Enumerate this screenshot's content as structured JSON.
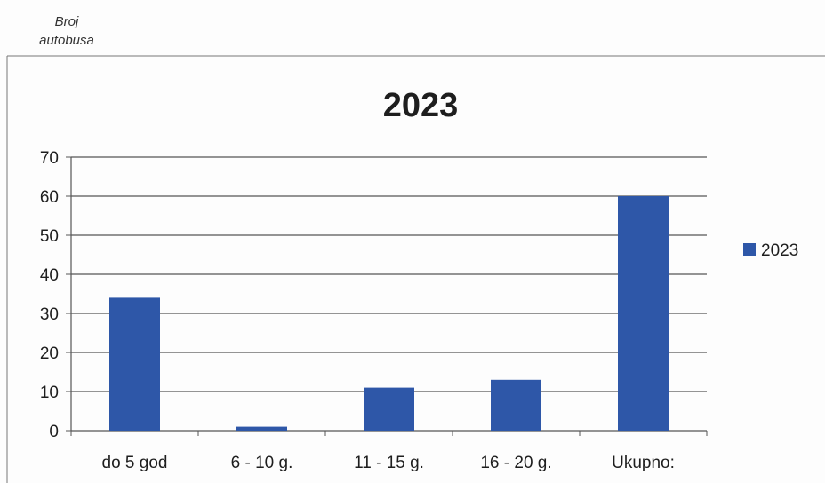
{
  "y_axis_caption": "Broj\nautobusa",
  "colors": {
    "bar": "#2E57A8",
    "grid": "#555555",
    "axis": "#555555"
  },
  "chart_data": {
    "type": "bar",
    "title": "2023",
    "xlabel": "",
    "ylabel": "Broj autobusa",
    "categories": [
      "do 5 god",
      "6 - 10 g.",
      "11 - 15 g.",
      "16 - 20 g.",
      "Ukupno:"
    ],
    "series": [
      {
        "name": "2023",
        "values": [
          34,
          1,
          11,
          13,
          60
        ]
      }
    ],
    "ylim": [
      0,
      70
    ],
    "yticks": [
      0,
      10,
      20,
      30,
      40,
      50,
      60,
      70
    ],
    "grid": true,
    "legend": "right"
  }
}
